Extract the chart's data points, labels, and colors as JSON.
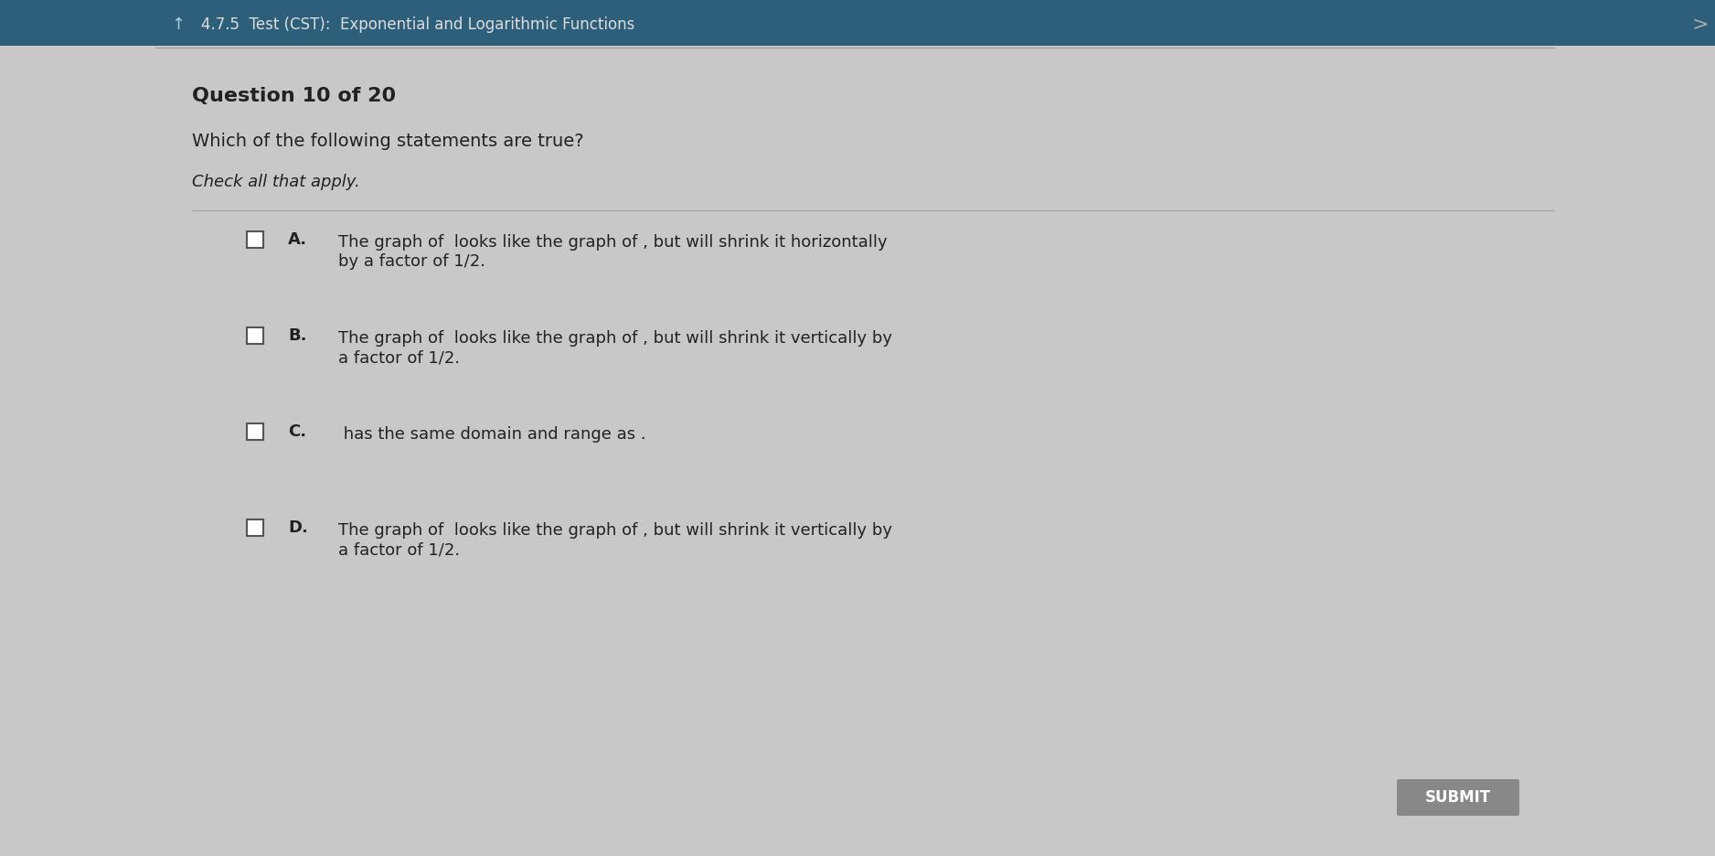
{
  "header_bg": "#2d5f7a",
  "header_text": "4.7.5  Test (CST):  Exponential and Logarithmic Functions",
  "header_fontsize": 12,
  "bg_color": "#c8c8c8",
  "question_label": "Question 10 of 20",
  "question_text": "Which of the following statements are true?",
  "instruction_text": "Check all that apply.",
  "options": [
    {
      "letter": "A.",
      "line1": "The graph of  looks like the graph of , but will shrink it horizontally",
      "line2": "by a factor of 1/2."
    },
    {
      "letter": "B.",
      "line1": "The graph of  looks like the graph of , but will shrink it vertically by",
      "line2": "a factor of 1/2."
    },
    {
      "letter": "C.",
      "line1": " has the same domain and range as .",
      "line2": ""
    },
    {
      "letter": "D.",
      "line1": "The graph of  looks like the graph of , but will shrink it vertically by",
      "line2": "a factor of 1/2."
    }
  ],
  "submit_text": "SUBMIT",
  "submit_bg": "#888888",
  "submit_text_color": "#ffffff",
  "divider_color": "#999999",
  "text_color": "#222222",
  "nav_arrow_color": "#888888"
}
